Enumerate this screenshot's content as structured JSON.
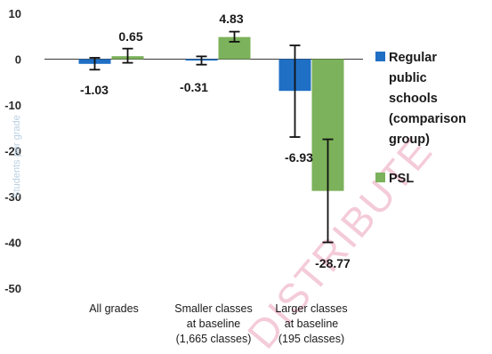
{
  "chart_data": {
    "type": "bar",
    "ylabel": "Students per grade",
    "ylim": [
      -50,
      10
    ],
    "yticks": [
      10,
      0,
      -10,
      -20,
      -30,
      -40,
      -50
    ],
    "categories": [
      [
        "All grades"
      ],
      [
        "Smaller classes",
        "at baseline",
        "(1,665 classes)"
      ],
      [
        "Larger classes",
        "at baseline",
        "(195 classes)"
      ]
    ],
    "series": [
      {
        "name": "Regular public schools (comparison group)",
        "legend_lines": [
          "Regular",
          "public",
          "schools",
          "(comparison",
          "group)"
        ],
        "color": "#1f6fc5",
        "values": [
          -1.03,
          -0.31,
          -6.93
        ],
        "ci_low": [
          -2.3,
          -1.2,
          -17.0
        ],
        "ci_high": [
          0.3,
          0.6,
          3.0
        ]
      },
      {
        "name": "PSL",
        "legend_lines": [
          "PSL"
        ],
        "color": "#7cb25b",
        "values": [
          0.65,
          4.83,
          -28.77
        ],
        "ci_low": [
          -0.8,
          3.8,
          -40.0
        ],
        "ci_high": [
          2.3,
          6.0,
          -17.5
        ]
      }
    ],
    "data_labels": [
      [
        "-1.03",
        "0.65"
      ],
      [
        "-0.31",
        "4.83"
      ],
      [
        "-6.93",
        "-28.77"
      ]
    ],
    "legend_position": "right",
    "watermark": "DISTRIBUTE"
  }
}
